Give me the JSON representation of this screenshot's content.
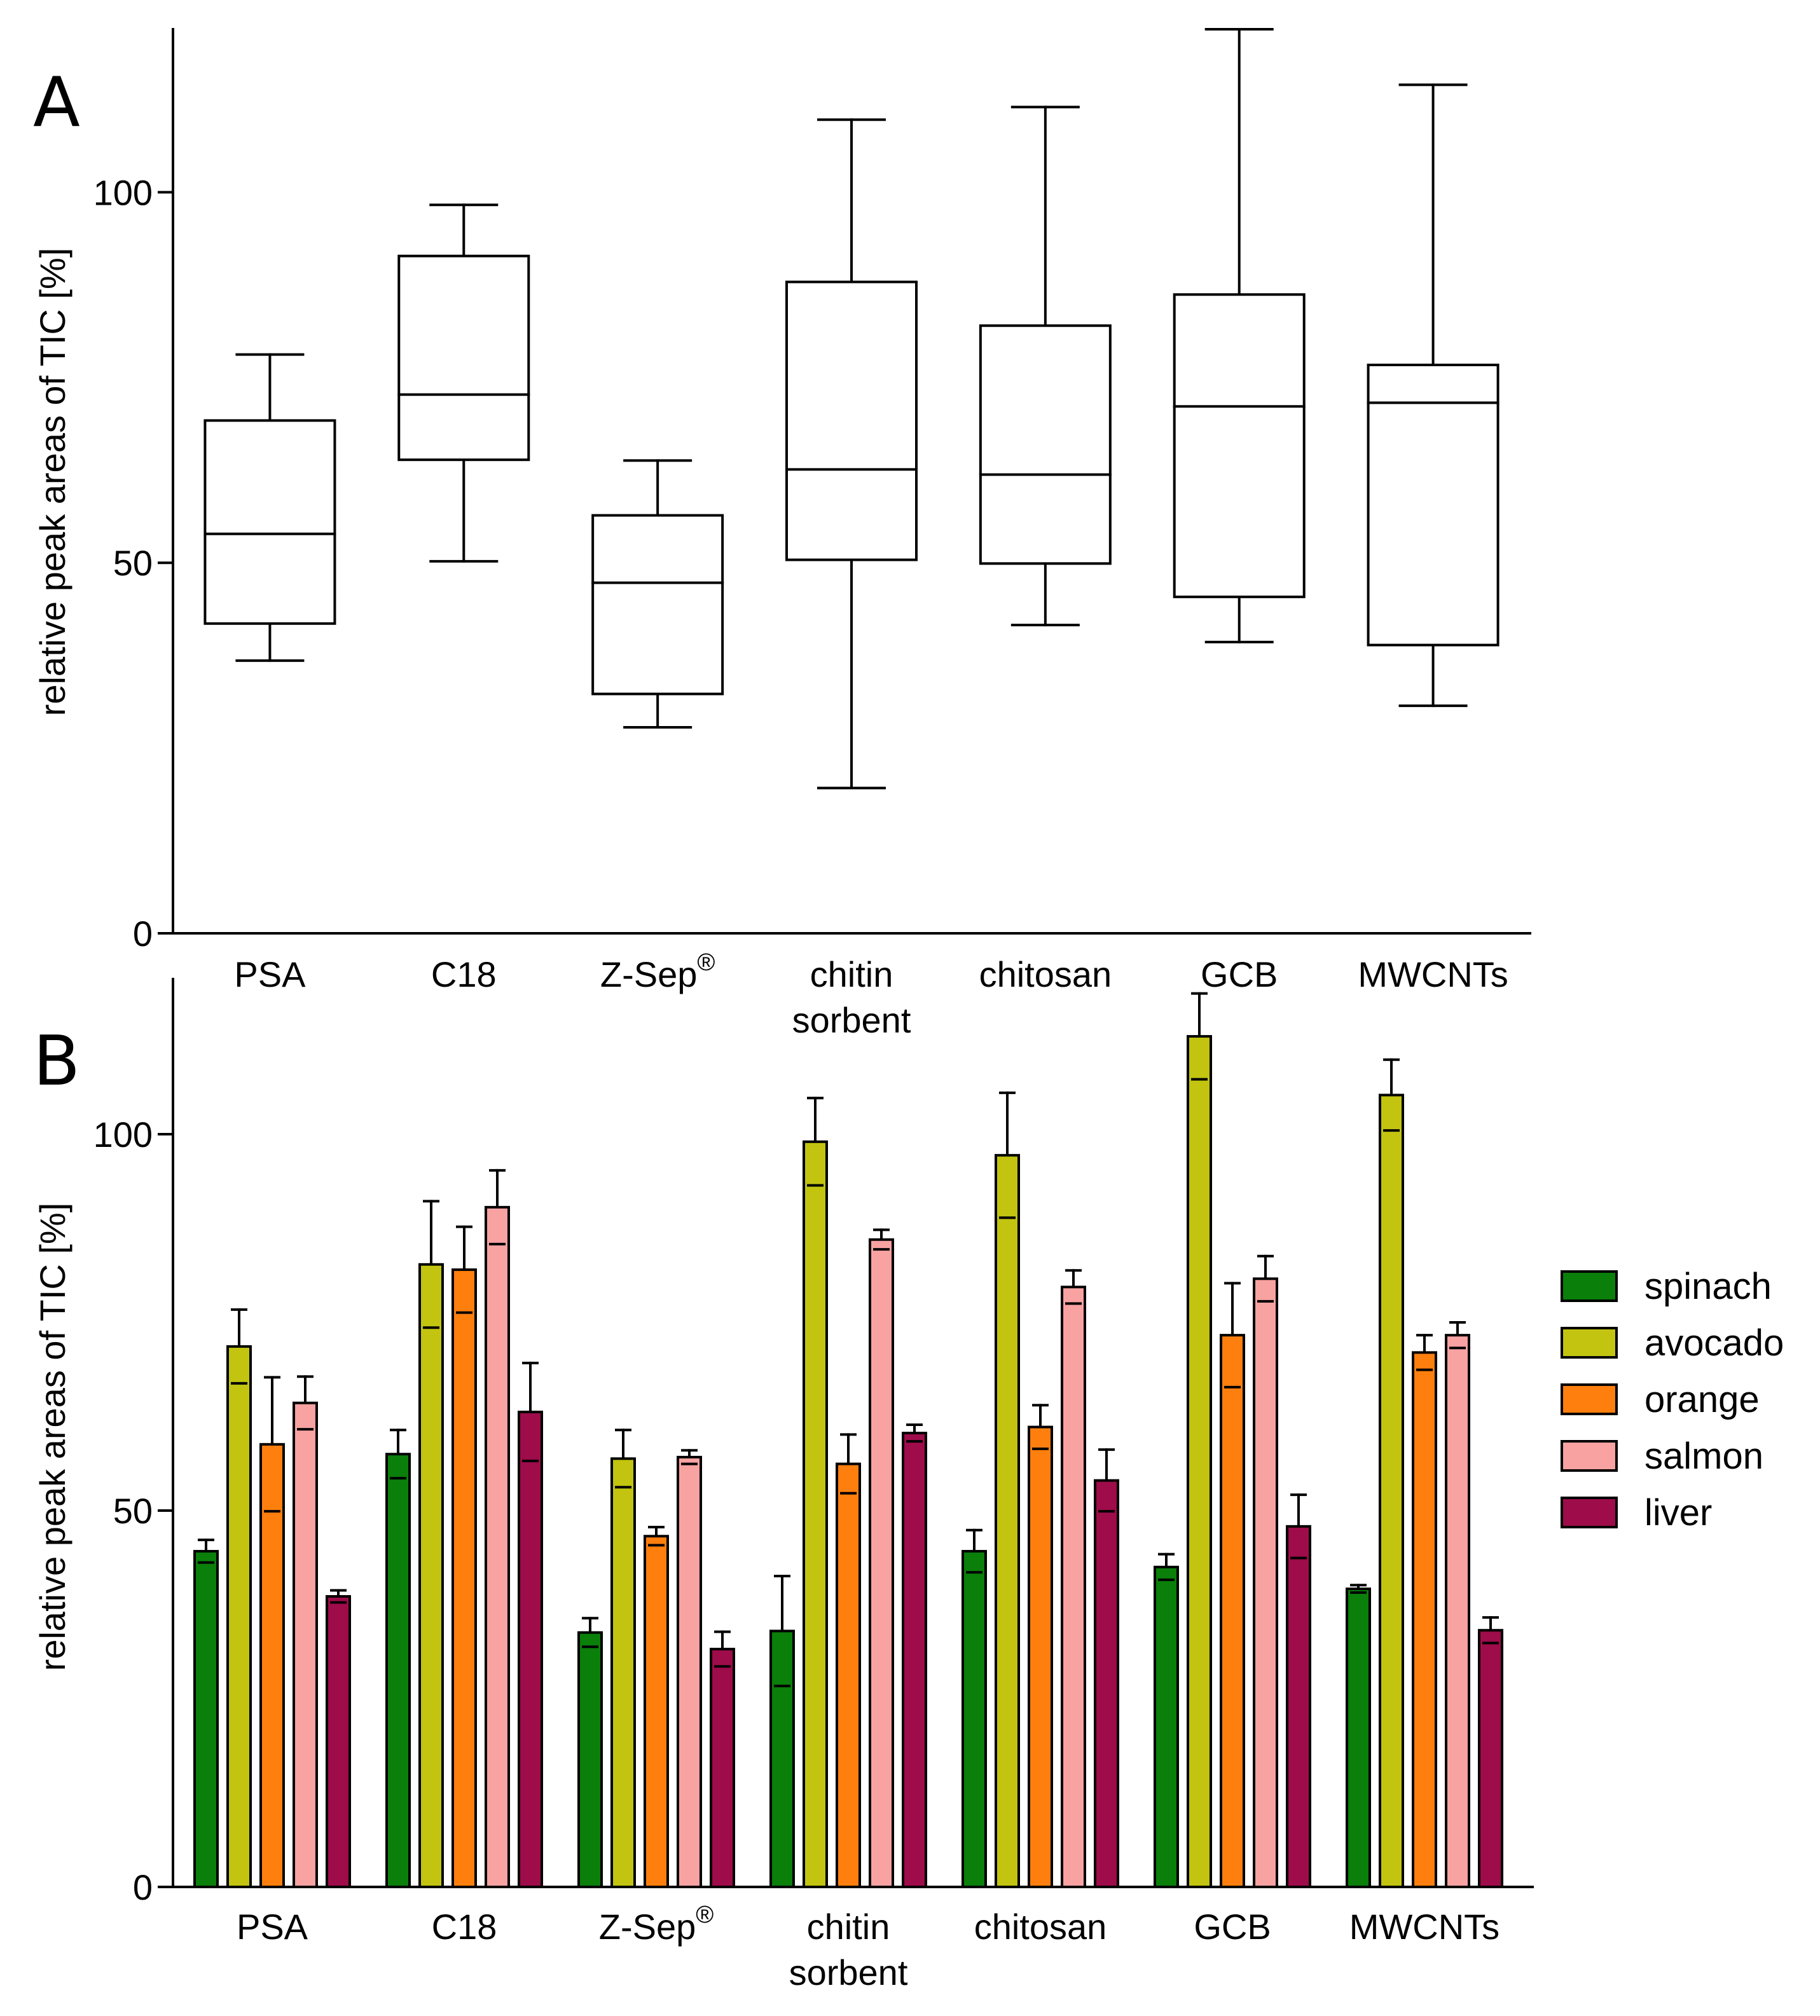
{
  "chart_data": [
    {
      "type": "box",
      "panel_label": "A",
      "ylabel": "relative peak areas of TIC [%]",
      "ylim": [
        0,
        122
      ],
      "yticks": [
        0,
        50,
        100
      ],
      "yticklabels": [
        "0",
        "50",
        "100"
      ],
      "categories": [
        {
          "lines": [
            "PSA"
          ],
          "sup": ""
        },
        {
          "lines": [
            "C18"
          ],
          "sup": ""
        },
        {
          "lines": [
            "Z-Sep"
          ],
          "sup": "®"
        },
        {
          "lines": [
            "chitin",
            "sorbent"
          ],
          "sup": ""
        },
        {
          "lines": [
            "chitosan"
          ],
          "sup": ""
        },
        {
          "lines": [
            "GCB"
          ],
          "sup": ""
        },
        {
          "lines": [
            "MWCNTs"
          ],
          "sup": ""
        }
      ],
      "boxes": [
        {
          "min": 36.8,
          "q1": 41.8,
          "median": 53.9,
          "q3": 69.2,
          "max": 78.1
        },
        {
          "min": 50.2,
          "q1": 63.9,
          "median": 72.7,
          "q3": 91.4,
          "max": 98.3
        },
        {
          "min": 27.8,
          "q1": 32.3,
          "median": 47.3,
          "q3": 56.4,
          "max": 63.8
        },
        {
          "min": 19.6,
          "q1": 50.4,
          "median": 62.6,
          "q3": 87.9,
          "max": 109.8
        },
        {
          "min": 41.6,
          "q1": 49.9,
          "median": 61.9,
          "q3": 82.0,
          "max": 111.5
        },
        {
          "min": 39.3,
          "q1": 45.4,
          "median": 71.1,
          "q3": 86.2,
          "max": 122.0
        },
        {
          "min": 30.7,
          "q1": 38.9,
          "median": 71.6,
          "q3": 76.7,
          "max": 114.5
        }
      ]
    },
    {
      "type": "bar",
      "panel_label": "B",
      "ylabel": "relative peak areas of TIC [%]",
      "ylim": [
        0,
        120
      ],
      "yticks": [
        0,
        50,
        100
      ],
      "yticklabels": [
        "0",
        "50",
        "100"
      ],
      "categories": [
        {
          "lines": [
            "PSA"
          ],
          "sup": ""
        },
        {
          "lines": [
            "C18"
          ],
          "sup": ""
        },
        {
          "lines": [
            "Z-Sep"
          ],
          "sup": "®"
        },
        {
          "lines": [
            "chitin",
            "sorbent"
          ],
          "sup": ""
        },
        {
          "lines": [
            "chitosan"
          ],
          "sup": ""
        },
        {
          "lines": [
            "GCB"
          ],
          "sup": ""
        },
        {
          "lines": [
            "MWCNTs"
          ],
          "sup": ""
        }
      ],
      "legend_position": "right",
      "series": [
        {
          "name": "spinach",
          "color": "#0a7f0a",
          "values": [
            44.6,
            57.5,
            33.8,
            34.0,
            44.6,
            42.5,
            39.6
          ],
          "errors": [
            1.5,
            3.2,
            1.9,
            7.3,
            2.8,
            1.7,
            0.5
          ]
        },
        {
          "name": "avocado",
          "color": "#c2c410",
          "values": [
            71.8,
            82.7,
            56.9,
            99.0,
            97.2,
            113.0,
            105.2
          ],
          "errors": [
            4.9,
            8.4,
            3.8,
            5.8,
            8.3,
            5.7,
            4.7
          ]
        },
        {
          "name": "orange",
          "color": "#ff7f0e",
          "values": [
            58.8,
            82.0,
            46.6,
            56.2,
            61.1,
            73.3,
            71.0
          ],
          "errors": [
            8.9,
            5.7,
            1.2,
            3.9,
            2.9,
            6.9,
            2.3
          ]
        },
        {
          "name": "salmon",
          "color": "#f9a2a2",
          "values": [
            64.3,
            90.3,
            57.1,
            86.0,
            79.7,
            80.8,
            73.3
          ],
          "errors": [
            3.5,
            4.9,
            0.9,
            1.3,
            2.2,
            3.0,
            1.7
          ]
        },
        {
          "name": "liver",
          "color": "#9e0c4a",
          "values": [
            38.6,
            63.1,
            31.6,
            60.3,
            54.0,
            47.9,
            34.1
          ],
          "errors": [
            0.8,
            6.5,
            2.3,
            1.1,
            4.1,
            4.2,
            1.7
          ]
        }
      ]
    }
  ]
}
